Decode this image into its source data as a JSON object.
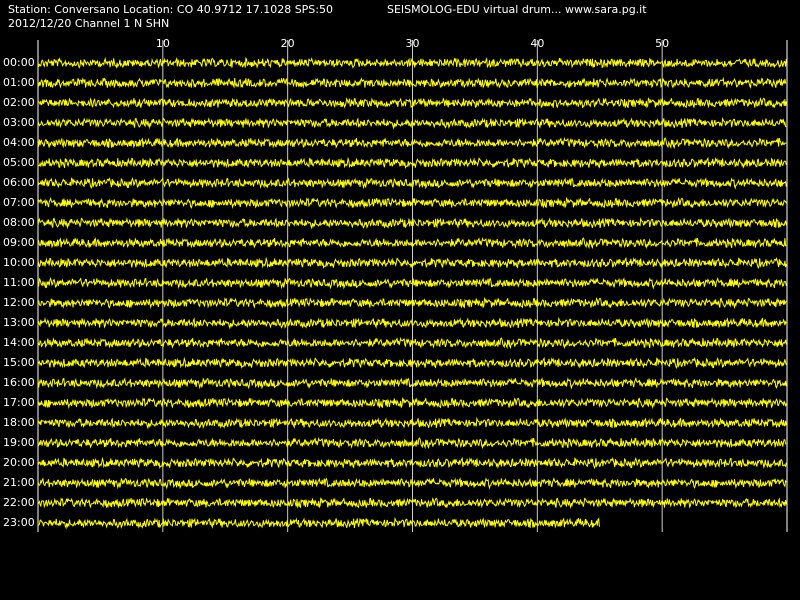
{
  "header": {
    "station": "Station: Conversano Location: CO 40.9712 17.1028 SPS:50",
    "date": "2012/12/20  Channel 1 N SHN",
    "program": "SEISMOLOG-EDU virtual drum... www.sara.pg.it"
  },
  "xlim": [
    0,
    60
  ],
  "xticks": [
    10,
    20,
    30,
    40,
    50
  ],
  "trace_color": "#ffff00",
  "rows": [
    {
      "label": "00:00",
      "end": 60
    },
    {
      "label": "01:00",
      "end": 60
    },
    {
      "label": "02:00",
      "end": 60
    },
    {
      "label": "03:00",
      "end": 60
    },
    {
      "label": "04:00",
      "end": 60
    },
    {
      "label": "05:00",
      "end": 60
    },
    {
      "label": "06:00",
      "end": 60
    },
    {
      "label": "07:00",
      "end": 60
    },
    {
      "label": "08:00",
      "end": 60
    },
    {
      "label": "09:00",
      "end": 60
    },
    {
      "label": "10:00",
      "end": 60
    },
    {
      "label": "11:00",
      "end": 60
    },
    {
      "label": "12:00",
      "end": 60
    },
    {
      "label": "13:00",
      "end": 60
    },
    {
      "label": "14:00",
      "end": 60
    },
    {
      "label": "15:00",
      "end": 60
    },
    {
      "label": "16:00",
      "end": 60
    },
    {
      "label": "17:00",
      "end": 60
    },
    {
      "label": "18:00",
      "end": 60
    },
    {
      "label": "19:00",
      "end": 60
    },
    {
      "label": "20:00",
      "end": 60
    },
    {
      "label": "21:00",
      "end": 60
    },
    {
      "label": "22:00",
      "end": 60
    },
    {
      "label": "23:00",
      "end": 45
    }
  ]
}
